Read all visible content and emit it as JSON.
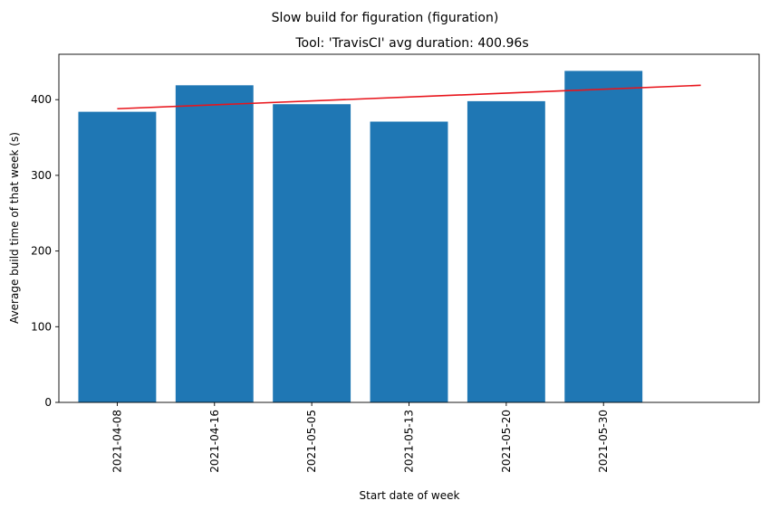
{
  "chart_data": {
    "type": "bar",
    "suptitle": "Slow build for figuration (figuration)",
    "title": "Tool: 'TravisCI' avg duration: 400.96s",
    "xlabel": "Start date of week",
    "ylabel": "Average build time of that week (s)",
    "categories": [
      "2021-04-08",
      "2021-04-16",
      "2021-05-05",
      "2021-05-13",
      "2021-05-20",
      "2021-05-30"
    ],
    "values": [
      384,
      419,
      394,
      371,
      398,
      438
    ],
    "ylim": [
      0,
      460
    ],
    "yticks": [
      0,
      100,
      200,
      300,
      400
    ],
    "trend_line": {
      "start": 388,
      "end": 419
    },
    "grid": false,
    "colors": {
      "bar": "#1f77b4",
      "trend": "#e8141b",
      "axis": "#000000"
    }
  }
}
